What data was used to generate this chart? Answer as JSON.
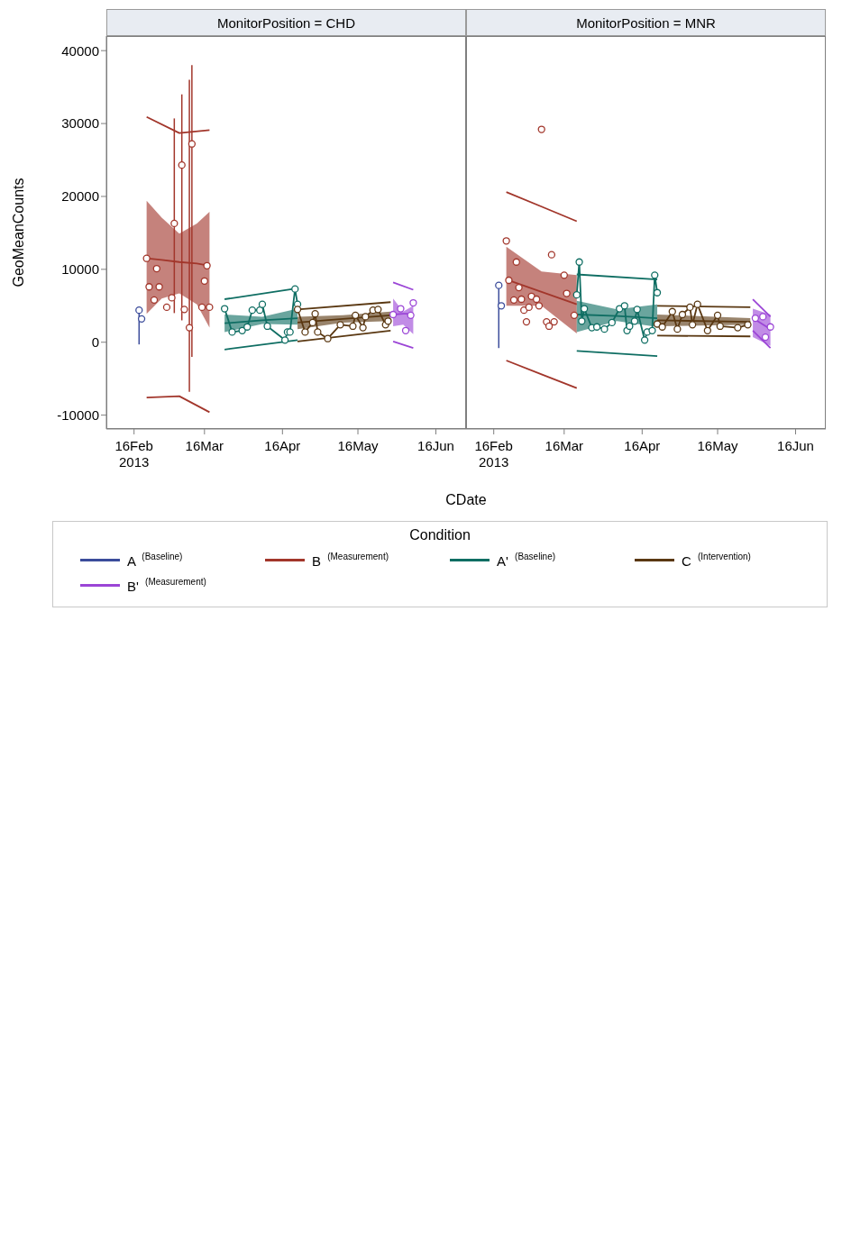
{
  "chart_data": [
    {
      "type": "line",
      "title": "MonitorPosition = CHD",
      "xlabel": "CDate",
      "ylabel": "GeoMeanCounts",
      "legend": "bottom",
      "legend_title": "Condition",
      "xlim": [
        "2013-02-05",
        "2013-06-28"
      ],
      "xticks": [
        {
          "value": "2013-02-16",
          "label": "16Feb 2013"
        },
        {
          "value": "2013-03-16",
          "label": "16Mar"
        },
        {
          "value": "2013-04-16",
          "label": "16Apr"
        },
        {
          "value": "2013-05-16",
          "label": "16May"
        },
        {
          "value": "2013-06-16",
          "label": "16Jun"
        }
      ],
      "ylim": [
        -11900,
        42000
      ],
      "yticks": [
        -10000,
        0,
        10000,
        20000,
        30000,
        40000
      ],
      "series": [
        {
          "name": "A $^{(Baseline)}$",
          "type": "scatter",
          "marker": "circle",
          "color": "#3b4c9b",
          "x": [
            "2013-02-18",
            "2013-02-19"
          ],
          "values": [
            4400,
            3200
          ],
          "errors": [
            [
              -300,
              4400
            ],
            null
          ]
        },
        {
          "name": "B $^{(Measurement)}$",
          "type": "scatter",
          "marker": "circle",
          "color": "#a2362b",
          "x": [
            "2013-02-21",
            "2013-02-22",
            "2013-02-24",
            "2013-02-25",
            "2013-02-26",
            "2013-03-01",
            "2013-03-03",
            "2013-03-04",
            "2013-03-07",
            "2013-03-08",
            "2013-03-10",
            "2013-03-11",
            "2013-03-15",
            "2013-03-16",
            "2013-03-17",
            "2013-03-18"
          ],
          "values": [
            11500,
            7600,
            5800,
            10100,
            7600,
            4800,
            6100,
            16300,
            24300,
            4500,
            2000,
            27200,
            4800,
            8400,
            10500,
            4800
          ],
          "errors": [
            null,
            null,
            null,
            null,
            null,
            null,
            null,
            [
              4000,
              30700
            ],
            [
              3000,
              34000
            ],
            null,
            [
              -6800,
              36000
            ],
            [
              -2000,
              38000
            ],
            null,
            null,
            null,
            null
          ]
        },
        {
          "type": "line",
          "marker": "none",
          "color": "#a2362b",
          "x": [
            "2013-02-21",
            "2013-02-27",
            "2013-03-06",
            "2013-03-13",
            "2013-03-18"
          ],
          "values": [
            11500,
            11300,
            11000,
            10800,
            10500
          ],
          "lower": [
            3900,
            6000,
            6700,
            5200,
            2000
          ],
          "upper": [
            19400,
            17100,
            14900,
            16300,
            17900
          ]
        },
        {
          "type": "line",
          "marker": "none",
          "color": "#a2362b",
          "x": [
            "2013-02-21",
            "2013-03-06",
            "2013-03-18"
          ],
          "values": [
            30900,
            28700,
            29100
          ]
        },
        {
          "type": "line",
          "marker": "none",
          "color": "#a2362b",
          "x": [
            "2013-02-21",
            "2013-03-06",
            "2013-03-18"
          ],
          "values": [
            -7600,
            -7400,
            -9600
          ]
        },
        {
          "name": "A' $^{(Baseline)}$",
          "type": "line",
          "marker": "circle",
          "color": "#0f6e63",
          "x": [
            "2013-03-24",
            "2013-03-27",
            "2013-03-31",
            "2013-04-02",
            "2013-04-04",
            "2013-04-07",
            "2013-04-08",
            "2013-04-10",
            "2013-04-17",
            "2013-04-18",
            "2013-04-19",
            "2013-04-21",
            "2013-04-22"
          ],
          "values": [
            4600,
            1400,
            1600,
            2100,
            4400,
            4400,
            5200,
            2200,
            300,
            1400,
            1400,
            7300,
            5200
          ]
        },
        {
          "type": "line",
          "marker": "none",
          "color": "#0f6e63",
          "x": [
            "2013-03-24",
            "2013-04-08",
            "2013-04-22"
          ],
          "values": [
            2600,
            3000,
            3300
          ],
          "lower": [
            1400,
            2500,
            2400
          ],
          "upper": [
            3800,
            3500,
            4600
          ]
        },
        {
          "type": "line",
          "marker": "none",
          "color": "#0f6e63",
          "x": [
            "2013-03-24",
            "2013-04-22"
          ],
          "values": [
            5900,
            7400
          ]
        },
        {
          "type": "line",
          "marker": "none",
          "color": "#0f6e63",
          "x": [
            "2013-03-24",
            "2013-04-22"
          ],
          "values": [
            -1000,
            300
          ]
        },
        {
          "name": "C $^{(Intervention)}$",
          "type": "line",
          "marker": "circle",
          "color": "#5a3812",
          "x": [
            "2013-04-22",
            "2013-04-25",
            "2013-04-28",
            "2013-04-29",
            "2013-04-30",
            "2013-05-04",
            "2013-05-09",
            "2013-05-14",
            "2013-05-15",
            "2013-05-18",
            "2013-05-19",
            "2013-05-22",
            "2013-05-24",
            "2013-05-27",
            "2013-05-28"
          ],
          "values": [
            4500,
            1400,
            2700,
            3900,
            1400,
            500,
            2400,
            2200,
            3700,
            2000,
            3500,
            4400,
            4500,
            2400,
            2900
          ]
        },
        {
          "type": "line",
          "marker": "none",
          "color": "#5a3812",
          "x": [
            "2013-04-22",
            "2013-05-10",
            "2013-05-29"
          ],
          "values": [
            2700,
            3200,
            3700
          ],
          "lower": [
            1800,
            2700,
            2900
          ],
          "upper": [
            3500,
            3700,
            4200
          ]
        },
        {
          "type": "line",
          "marker": "none",
          "color": "#5a3812",
          "x": [
            "2013-04-22",
            "2013-05-29"
          ],
          "values": [
            4500,
            5500
          ]
        },
        {
          "type": "line",
          "marker": "none",
          "color": "#5a3812",
          "x": [
            "2013-04-22",
            "2013-05-29"
          ],
          "values": [
            100,
            1600
          ]
        },
        {
          "name": "B' $^{(Measurement)}$",
          "type": "scatter",
          "marker": "circle",
          "color": "#9b45d6",
          "x": [
            "2013-05-30",
            "2013-06-02",
            "2013-06-04",
            "2013-06-06",
            "2013-06-07"
          ],
          "values": [
            3800,
            4600,
            1600,
            3700,
            5400
          ]
        },
        {
          "type": "line",
          "marker": "none",
          "color": "#9b45d6",
          "x": [
            "2013-05-30",
            "2013-06-03",
            "2013-06-07"
          ],
          "values": [
            3800,
            3900,
            3900
          ],
          "lower": [
            2200,
            2400,
            1100
          ],
          "upper": [
            6000,
            4200,
            5000
          ]
        },
        {
          "type": "line",
          "marker": "none",
          "color": "#9b45d6",
          "x": [
            "2013-05-30",
            "2013-06-07"
          ],
          "values": [
            8200,
            7200
          ]
        },
        {
          "type": "line",
          "marker": "none",
          "color": "#9b45d6",
          "x": [
            "2013-05-30",
            "2013-06-07"
          ],
          "values": [
            100,
            -800
          ]
        }
      ]
    },
    {
      "type": "line",
      "title": "MonitorPosition = MNR",
      "tick_labels": "x",
      "xlim": [
        "2013-02-05",
        "2013-06-28"
      ],
      "xticks": [
        {
          "value": "2013-02-16",
          "label": "16Feb 2013"
        },
        {
          "value": "2013-03-16",
          "label": "16Mar"
        },
        {
          "value": "2013-04-16",
          "label": "16Apr"
        },
        {
          "value": "2013-05-16",
          "label": "16May"
        },
        {
          "value": "2013-06-16",
          "label": "16Jun"
        }
      ],
      "ylim": [
        -11900,
        42000
      ],
      "yticks": [
        -10000,
        0,
        10000,
        20000,
        30000,
        40000
      ],
      "series": [
        {
          "type": "scatter",
          "marker": "circle",
          "color": "#3b4c9b",
          "x": [
            "2013-02-18",
            "2013-02-19"
          ],
          "values": [
            7800,
            5000
          ],
          "errors": [
            [
              -800,
              7800
            ],
            null
          ]
        },
        {
          "type": "scatter",
          "marker": "circle",
          "color": "#a2362b",
          "x": [
            "2013-02-21",
            "2013-02-22",
            "2013-02-24",
            "2013-02-25",
            "2013-02-26",
            "2013-02-27",
            "2013-02-28",
            "2013-03-01",
            "2013-03-02",
            "2013-03-03",
            "2013-03-05",
            "2013-03-06",
            "2013-03-07",
            "2013-03-09",
            "2013-03-10",
            "2013-03-11",
            "2013-03-12",
            "2013-03-16",
            "2013-03-17",
            "2013-03-20"
          ],
          "values": [
            13900,
            8500,
            5800,
            11000,
            7500,
            5900,
            4400,
            2800,
            4800,
            6300,
            5900,
            5000,
            29200,
            2800,
            2200,
            12000,
            2800,
            9200,
            6700,
            3700
          ]
        },
        {
          "type": "line",
          "marker": "none",
          "color": "#a2362b",
          "x": [
            "2013-02-21",
            "2013-03-07",
            "2013-03-21"
          ],
          "values": [
            8600,
            6900,
            5200
          ],
          "lower": [
            5000,
            5000,
            1200
          ],
          "upper": [
            13100,
            9700,
            9200
          ]
        },
        {
          "type": "line",
          "marker": "none",
          "color": "#a2362b",
          "x": [
            "2013-02-21",
            "2013-03-07",
            "2013-03-21"
          ],
          "values": [
            20600,
            18600,
            16600
          ]
        },
        {
          "type": "line",
          "marker": "none",
          "color": "#a2362b",
          "x": [
            "2013-02-21",
            "2013-03-07",
            "2013-03-21"
          ],
          "values": [
            -2500,
            -4400,
            -6300
          ]
        },
        {
          "type": "line",
          "marker": "circle",
          "color": "#0f6e63",
          "x": [
            "2013-03-21",
            "2013-03-22",
            "2013-03-23",
            "2013-03-24",
            "2013-03-27",
            "2013-03-29",
            "2013-04-01",
            "2013-04-04",
            "2013-04-07",
            "2013-04-09",
            "2013-04-10",
            "2013-04-11",
            "2013-04-13",
            "2013-04-14",
            "2013-04-17",
            "2013-04-18",
            "2013-04-20",
            "2013-04-21",
            "2013-04-22"
          ],
          "values": [
            6500,
            11000,
            2900,
            4600,
            2000,
            2100,
            1800,
            2700,
            4600,
            5000,
            1600,
            2200,
            2900,
            4500,
            300,
            1400,
            1600,
            9200,
            6800
          ]
        },
        {
          "type": "line",
          "marker": "none",
          "color": "#0f6e63",
          "x": [
            "2013-03-21",
            "2013-04-06",
            "2013-04-22"
          ],
          "values": [
            3800,
            3600,
            3300
          ],
          "lower": [
            1400,
            2900,
            2100
          ],
          "upper": [
            5700,
            4500,
            5200
          ]
        },
        {
          "type": "line",
          "marker": "none",
          "color": "#0f6e63",
          "x": [
            "2013-03-21",
            "2013-04-22"
          ],
          "values": [
            9300,
            8600
          ]
        },
        {
          "type": "line",
          "marker": "none",
          "color": "#0f6e63",
          "x": [
            "2013-03-21",
            "2013-04-22"
          ],
          "values": [
            -1200,
            -1900
          ]
        },
        {
          "type": "line",
          "marker": "circle",
          "color": "#5a3812",
          "x": [
            "2013-04-22",
            "2013-04-24",
            "2013-04-28",
            "2013-04-30",
            "2013-05-02",
            "2013-05-05",
            "2013-05-06",
            "2013-05-08",
            "2013-05-12",
            "2013-05-16",
            "2013-05-17",
            "2013-05-24",
            "2013-05-28"
          ],
          "values": [
            2500,
            2100,
            4200,
            1800,
            3800,
            4800,
            2400,
            5200,
            1600,
            3700,
            2200,
            2000,
            2400
          ]
        },
        {
          "type": "line",
          "marker": "none",
          "color": "#5a3812",
          "x": [
            "2013-04-22",
            "2013-05-29"
          ],
          "values": [
            3000,
            2800
          ],
          "lower": [
            2200,
            2400
          ],
          "upper": [
            3800,
            3300
          ]
        },
        {
          "type": "line",
          "marker": "none",
          "color": "#5a3812",
          "x": [
            "2013-04-22",
            "2013-05-29"
          ],
          "values": [
            5000,
            4800
          ]
        },
        {
          "type": "line",
          "marker": "none",
          "color": "#5a3812",
          "x": [
            "2013-04-22",
            "2013-05-29"
          ],
          "values": [
            900,
            800
          ]
        },
        {
          "type": "scatter",
          "marker": "circle",
          "color": "#9b45d6",
          "x": [
            "2013-05-31",
            "2013-06-03",
            "2013-06-04",
            "2013-06-06"
          ],
          "values": [
            3300,
            3500,
            700,
            2100
          ]
        },
        {
          "type": "line",
          "marker": "none",
          "color": "#9b45d6",
          "x": [
            "2013-05-30",
            "2013-06-06"
          ],
          "values": [
            3300,
            1800
          ],
          "lower": [
            700,
            -500
          ],
          "upper": [
            4600,
            3800
          ]
        },
        {
          "type": "line",
          "marker": "none",
          "color": "#9b45d6",
          "x": [
            "2013-05-30",
            "2013-06-06"
          ],
          "values": [
            5900,
            3500
          ]
        },
        {
          "type": "line",
          "marker": "none",
          "color": "#9b45d6",
          "x": [
            "2013-05-30",
            "2013-06-06"
          ],
          "values": [
            1600,
            -800
          ]
        }
      ]
    }
  ]
}
